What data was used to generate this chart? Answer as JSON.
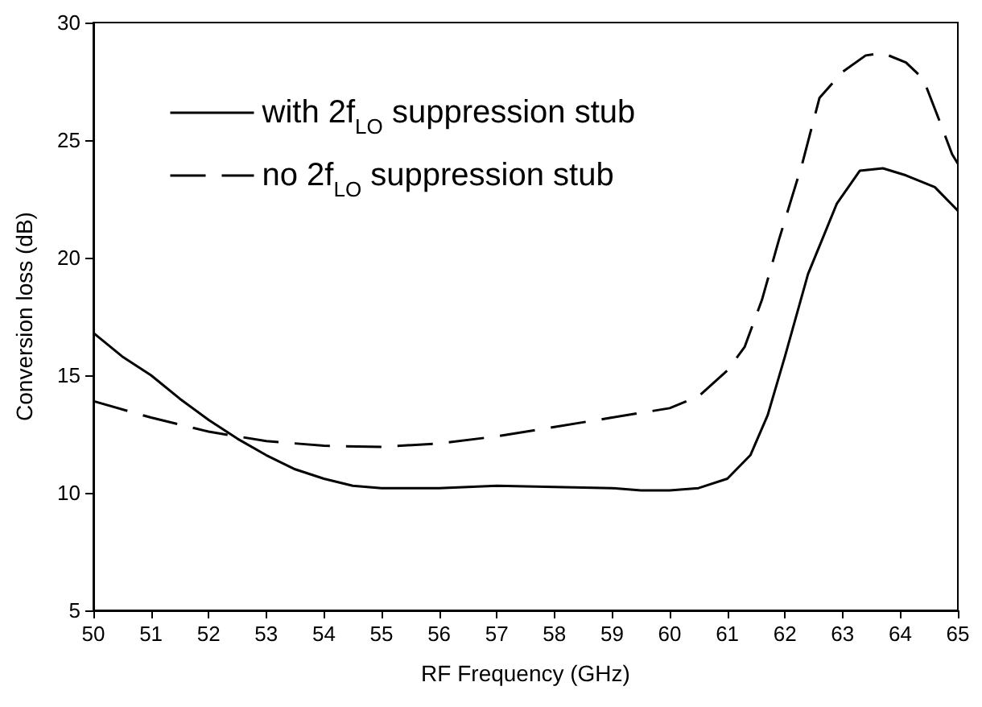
{
  "chart_data": {
    "type": "line",
    "xlabel": "RF Frequency (GHz)",
    "ylabel": "Conversion loss (dB)",
    "xlim": [
      50,
      65
    ],
    "xticks": [
      50,
      51,
      52,
      53,
      54,
      55,
      56,
      57,
      58,
      59,
      60,
      61,
      62,
      63,
      64,
      65
    ],
    "ylim": [
      5,
      30
    ],
    "yticks": [
      5,
      10,
      15,
      20,
      25,
      30
    ],
    "grid": false,
    "legend": "top left",
    "marker": "none",
    "series": [
      {
        "name": "with 2f$_{LO}$ suppression stub",
        "color": "#000000",
        "line_style": "solid",
        "x": [
          50,
          50.5,
          51,
          51.5,
          52,
          52.5,
          53,
          53.5,
          54,
          54.5,
          55,
          56,
          57,
          58,
          59,
          59.5,
          60,
          60.5,
          61,
          61.4,
          61.7,
          62,
          62.4,
          62.9,
          63.3,
          63.7,
          64.1,
          64.6,
          65
        ],
        "values": [
          16.8,
          15.8,
          15.0,
          14.0,
          13.1,
          12.3,
          11.6,
          11.0,
          10.6,
          10.3,
          10.2,
          10.2,
          10.3,
          10.25,
          10.2,
          10.1,
          10.1,
          10.2,
          10.6,
          11.6,
          13.3,
          15.8,
          19.3,
          22.3,
          23.7,
          23.8,
          23.5,
          23.0,
          22.0
        ]
      },
      {
        "name": "no 2f$_{LO}$ suppression stub",
        "color": "#000000",
        "line_style": "dashed",
        "x": [
          50,
          51,
          52,
          53,
          54,
          55,
          56,
          57,
          58,
          59,
          60,
          60.5,
          61,
          61.3,
          61.6,
          61.9,
          62.3,
          62.6,
          63,
          63.4,
          63.7,
          64.1,
          64.4,
          64.7,
          64.9,
          65
        ],
        "values": [
          13.9,
          13.2,
          12.6,
          12.2,
          12.0,
          11.95,
          12.1,
          12.4,
          12.8,
          13.2,
          13.6,
          14.1,
          15.2,
          16.2,
          18.2,
          20.8,
          24.0,
          26.8,
          27.9,
          28.6,
          28.7,
          28.3,
          27.6,
          25.7,
          24.4,
          24.0
        ]
      }
    ]
  }
}
